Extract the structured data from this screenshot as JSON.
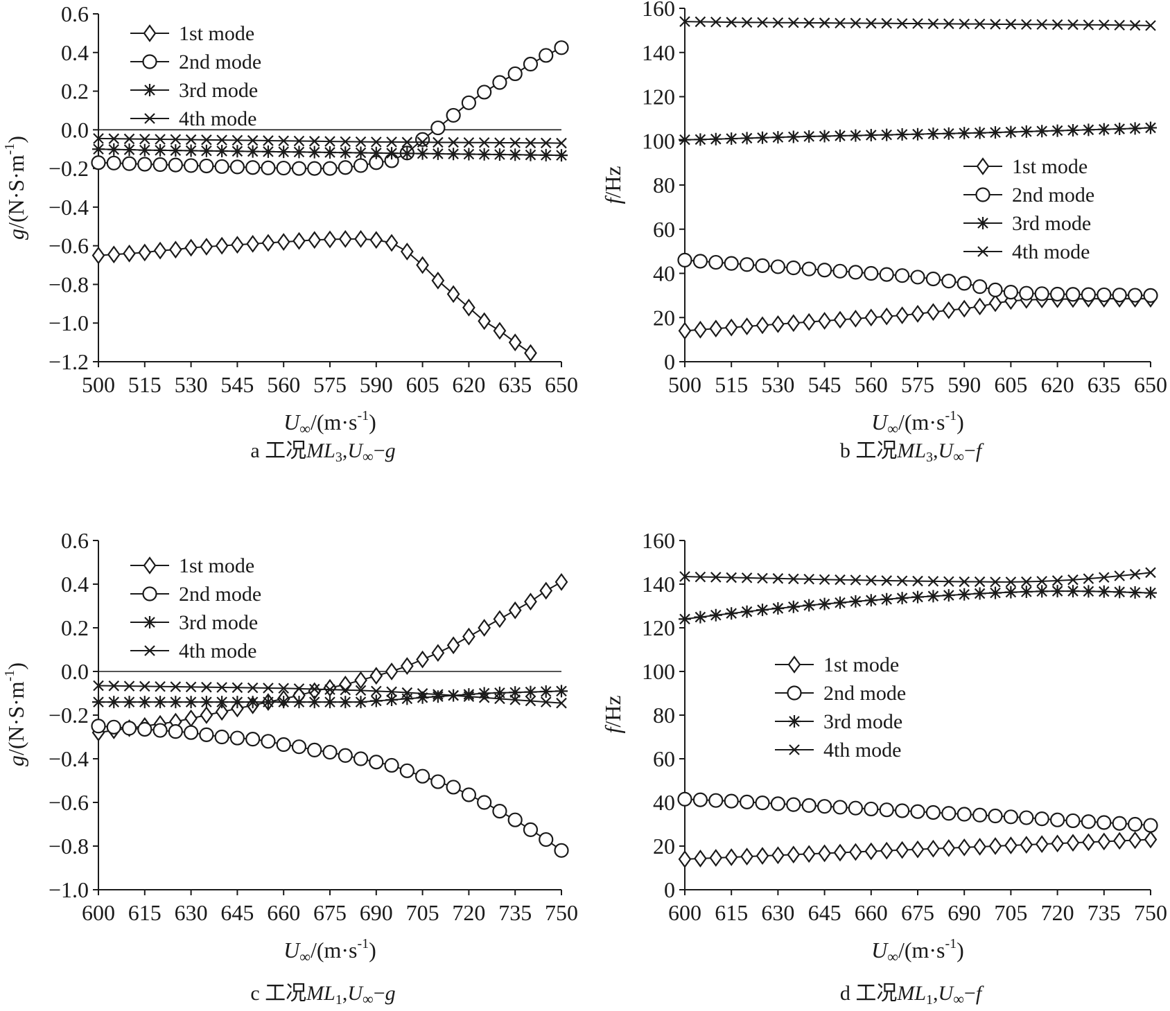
{
  "chart_data": [
    {
      "id": "a",
      "type": "line",
      "caption": {
        "letter": "a",
        "condition": "工况",
        "case": "ML",
        "sub": "3",
        "rel": ",U∞−g"
      },
      "xlabel": "U∞/(m·s⁻¹)",
      "ylabel": "g/(N·S·m⁻¹)",
      "xlim": [
        500,
        650
      ],
      "ylim": [
        -1.2,
        0.6
      ],
      "xticks": [
        500,
        515,
        530,
        545,
        560,
        575,
        590,
        605,
        620,
        635,
        650
      ],
      "yticks": [
        -1.2,
        -1.0,
        -0.8,
        -0.6,
        -0.4,
        -0.2,
        0.0,
        0.2,
        0.4,
        0.6
      ],
      "ytick_labels": [
        "−1.2",
        "−1.0",
        "−0.8",
        "−0.6",
        "−0.4",
        "−0.2",
        "0.0",
        "0.2",
        "0.4",
        "0.6"
      ],
      "xticks_labels": [
        "500",
        "515",
        "530",
        "545",
        "560",
        "575",
        "590",
        "605",
        "620",
        "635",
        "650"
      ],
      "zero_line": true,
      "legend_position": "top-left",
      "x": [
        500,
        505,
        510,
        515,
        520,
        525,
        530,
        535,
        540,
        545,
        550,
        555,
        560,
        565,
        570,
        575,
        580,
        585,
        590,
        595,
        600,
        605,
        610,
        615,
        620,
        625,
        630,
        635,
        640,
        645,
        650
      ],
      "series": [
        {
          "name": "1st mode",
          "marker": "diamond",
          "values": [
            -0.65,
            -0.645,
            -0.64,
            -0.635,
            -0.625,
            -0.62,
            -0.61,
            -0.605,
            -0.6,
            -0.595,
            -0.59,
            -0.585,
            -0.58,
            -0.575,
            -0.57,
            -0.567,
            -0.565,
            -0.565,
            -0.57,
            -0.585,
            -0.63,
            -0.7,
            -0.78,
            -0.85,
            -0.92,
            -0.99,
            -1.04,
            -1.1,
            -1.155,
            null,
            null
          ]
        },
        {
          "name": "2nd mode",
          "marker": "circle",
          "values": [
            -0.17,
            -0.172,
            -0.175,
            -0.178,
            -0.18,
            -0.182,
            -0.185,
            -0.187,
            -0.19,
            -0.192,
            -0.195,
            -0.197,
            -0.198,
            -0.2,
            -0.2,
            -0.2,
            -0.195,
            -0.185,
            -0.17,
            -0.16,
            -0.12,
            -0.05,
            0.01,
            0.075,
            0.14,
            0.195,
            0.245,
            0.29,
            0.34,
            0.385,
            0.425
          ]
        },
        {
          "name": "3rd mode",
          "marker": "asterisk",
          "values": [
            -0.1,
            -0.102,
            -0.103,
            -0.105,
            -0.106,
            -0.107,
            -0.108,
            -0.109,
            -0.11,
            -0.111,
            -0.112,
            -0.113,
            -0.114,
            -0.115,
            -0.116,
            -0.117,
            -0.118,
            -0.119,
            -0.12,
            -0.121,
            -0.122,
            -0.123,
            -0.124,
            -0.125,
            -0.126,
            -0.127,
            -0.128,
            -0.129,
            -0.13,
            -0.131,
            -0.132
          ]
        },
        {
          "name": "4th mode",
          "marker": "x",
          "values": [
            -0.045,
            -0.046,
            -0.047,
            -0.048,
            -0.049,
            -0.05,
            -0.051,
            -0.052,
            -0.053,
            -0.054,
            -0.055,
            -0.056,
            -0.057,
            -0.058,
            -0.059,
            -0.06,
            -0.061,
            -0.062,
            -0.063,
            -0.063,
            -0.064,
            -0.064,
            -0.065,
            -0.065,
            -0.066,
            -0.066,
            -0.067,
            -0.067,
            -0.068,
            -0.068,
            -0.069
          ]
        }
      ]
    },
    {
      "id": "b",
      "type": "line",
      "caption": {
        "letter": "b",
        "condition": "工况",
        "case": "ML",
        "sub": "3",
        "rel": ",U∞−f"
      },
      "xlabel": "U∞/(m·s⁻¹)",
      "ylabel": "f/Hz",
      "xlim": [
        500,
        650
      ],
      "ylim": [
        0,
        160
      ],
      "xticks": [
        500,
        515,
        530,
        545,
        560,
        575,
        590,
        605,
        620,
        635,
        650
      ],
      "yticks": [
        0,
        20,
        40,
        60,
        80,
        100,
        120,
        140,
        160
      ],
      "ytick_labels": [
        "0",
        "20",
        "40",
        "60",
        "80",
        "100",
        "120",
        "140",
        "160"
      ],
      "xticks_labels": [
        "500",
        "515",
        "530",
        "545",
        "560",
        "575",
        "590",
        "605",
        "620",
        "635",
        "650"
      ],
      "zero_line": false,
      "legend_position": "middle-right",
      "x": [
        500,
        505,
        510,
        515,
        520,
        525,
        530,
        535,
        540,
        545,
        550,
        555,
        560,
        565,
        570,
        575,
        580,
        585,
        590,
        595,
        600,
        605,
        610,
        615,
        620,
        625,
        630,
        635,
        640,
        645,
        650
      ],
      "series": [
        {
          "name": "1st mode",
          "marker": "diamond",
          "values": [
            14,
            14.5,
            15,
            15.5,
            16,
            16.5,
            17,
            17.5,
            18,
            18.5,
            19,
            19.5,
            20,
            20.5,
            21,
            21.7,
            22.5,
            23.3,
            24,
            25,
            26.5,
            27.5,
            28,
            28.2,
            28.3,
            28.4,
            28.5,
            28.5,
            28.5,
            28.5,
            28.5
          ]
        },
        {
          "name": "2nd mode",
          "marker": "circle",
          "values": [
            46,
            45.5,
            45,
            44.5,
            44,
            43.5,
            43,
            42.5,
            42,
            41.5,
            41,
            40.5,
            40,
            39.5,
            39,
            38.3,
            37.5,
            36.5,
            35.5,
            34,
            32.5,
            31.5,
            31,
            30.8,
            30.6,
            30.5,
            30.4,
            30.3,
            30.2,
            30.1,
            30
          ]
        },
        {
          "name": "3rd mode",
          "marker": "asterisk",
          "values": [
            100.5,
            100.6,
            100.8,
            101,
            101.2,
            101.4,
            101.6,
            101.8,
            102,
            102.1,
            102.3,
            102.4,
            102.6,
            102.7,
            102.9,
            103,
            103.2,
            103.3,
            103.5,
            103.6,
            103.8,
            104,
            104.2,
            104.4,
            104.6,
            104.8,
            105,
            105.2,
            105.4,
            105.6,
            105.9
          ]
        },
        {
          "name": "4th mode",
          "marker": "x",
          "values": [
            154,
            153.9,
            153.8,
            153.7,
            153.6,
            153.6,
            153.5,
            153.5,
            153.4,
            153.4,
            153.3,
            153.3,
            153.2,
            153.2,
            153.1,
            153.1,
            153,
            153,
            152.9,
            152.9,
            152.8,
            152.8,
            152.7,
            152.7,
            152.6,
            152.6,
            152.5,
            152.5,
            152.4,
            152.3,
            152.2
          ]
        }
      ]
    },
    {
      "id": "c",
      "type": "line",
      "caption": {
        "letter": "c",
        "condition": "工况",
        "case": "ML",
        "sub": "1",
        "rel": ",U∞−g"
      },
      "xlabel": "U∞/(m·s⁻¹)",
      "ylabel": "g/(N·S·m⁻¹)",
      "xlim": [
        600,
        750
      ],
      "ylim": [
        -1.0,
        0.6
      ],
      "xticks": [
        600,
        615,
        630,
        645,
        660,
        675,
        690,
        705,
        720,
        735,
        750
      ],
      "yticks": [
        -1.0,
        -0.8,
        -0.6,
        -0.4,
        -0.2,
        0.0,
        0.2,
        0.4,
        0.6
      ],
      "ytick_labels": [
        "−1.0",
        "−0.8",
        "−0.6",
        "−0.4",
        "−0.2",
        "0.0",
        "0.2",
        "0.4",
        "0.6"
      ],
      "xticks_labels": [
        "600",
        "615",
        "630",
        "645",
        "660",
        "675",
        "690",
        "705",
        "720",
        "735",
        "750"
      ],
      "zero_line": true,
      "legend_position": "top-left",
      "x": [
        600,
        605,
        610,
        615,
        620,
        625,
        630,
        635,
        640,
        645,
        650,
        655,
        660,
        665,
        670,
        675,
        680,
        685,
        690,
        695,
        700,
        705,
        710,
        715,
        720,
        725,
        730,
        735,
        740,
        745,
        750
      ],
      "series": [
        {
          "name": "1st mode",
          "marker": "diamond",
          "values": [
            -0.28,
            -0.27,
            -0.26,
            -0.25,
            -0.24,
            -0.23,
            -0.215,
            -0.2,
            -0.185,
            -0.17,
            -0.155,
            -0.14,
            -0.125,
            -0.11,
            -0.09,
            -0.075,
            -0.06,
            -0.04,
            -0.02,
            0.0,
            0.025,
            0.055,
            0.085,
            0.12,
            0.16,
            0.2,
            0.24,
            0.28,
            0.32,
            0.37,
            0.41
          ]
        },
        {
          "name": "2nd mode",
          "marker": "circle",
          "values": [
            -0.25,
            -0.255,
            -0.26,
            -0.265,
            -0.27,
            -0.275,
            -0.28,
            -0.29,
            -0.3,
            -0.305,
            -0.31,
            -0.32,
            -0.335,
            -0.345,
            -0.36,
            -0.37,
            -0.385,
            -0.4,
            -0.415,
            -0.43,
            -0.455,
            -0.48,
            -0.505,
            -0.53,
            -0.565,
            -0.6,
            -0.64,
            -0.68,
            -0.725,
            -0.77,
            -0.82
          ]
        },
        {
          "name": "3rd mode",
          "marker": "asterisk",
          "values": [
            -0.14,
            -0.14,
            -0.14,
            -0.14,
            -0.14,
            -0.14,
            -0.14,
            -0.14,
            -0.14,
            -0.14,
            -0.14,
            -0.14,
            -0.14,
            -0.14,
            -0.14,
            -0.14,
            -0.14,
            -0.14,
            -0.135,
            -0.13,
            -0.125,
            -0.12,
            -0.115,
            -0.11,
            -0.105,
            -0.1,
            -0.098,
            -0.096,
            -0.094,
            -0.092,
            -0.09
          ]
        },
        {
          "name": "4th mode",
          "marker": "x",
          "values": [
            -0.065,
            -0.066,
            -0.067,
            -0.068,
            -0.069,
            -0.07,
            -0.071,
            -0.072,
            -0.073,
            -0.074,
            -0.075,
            -0.076,
            -0.077,
            -0.079,
            -0.081,
            -0.083,
            -0.085,
            -0.087,
            -0.09,
            -0.093,
            -0.097,
            -0.101,
            -0.105,
            -0.11,
            -0.115,
            -0.12,
            -0.125,
            -0.13,
            -0.135,
            -0.14,
            -0.145
          ]
        }
      ]
    },
    {
      "id": "d",
      "type": "line",
      "caption": {
        "letter": "d",
        "condition": "工况",
        "case": "ML",
        "sub": "1",
        "rel": ",U∞−f"
      },
      "xlabel": "U∞/(m·s⁻¹)",
      "ylabel": "f/Hz",
      "xlim": [
        600,
        750
      ],
      "ylim": [
        0,
        160
      ],
      "xticks": [
        600,
        615,
        630,
        645,
        660,
        675,
        690,
        705,
        720,
        735,
        750
      ],
      "yticks": [
        0,
        20,
        40,
        60,
        80,
        100,
        120,
        140,
        160
      ],
      "ytick_labels": [
        "0",
        "20",
        "40",
        "60",
        "80",
        "100",
        "120",
        "140",
        "160"
      ],
      "xticks_labels": [
        "600",
        "615",
        "630",
        "645",
        "660",
        "675",
        "690",
        "705",
        "720",
        "735",
        "750"
      ],
      "zero_line": false,
      "legend_position": "middle-left",
      "x": [
        600,
        605,
        610,
        615,
        620,
        625,
        630,
        635,
        640,
        645,
        650,
        655,
        660,
        665,
        670,
        675,
        680,
        685,
        690,
        695,
        700,
        705,
        710,
        715,
        720,
        725,
        730,
        735,
        740,
        745,
        750
      ],
      "series": [
        {
          "name": "1st mode",
          "marker": "diamond",
          "values": [
            14,
            14.3,
            14.6,
            14.9,
            15.2,
            15.5,
            15.8,
            16.1,
            16.4,
            16.7,
            17,
            17.3,
            17.6,
            17.9,
            18.2,
            18.5,
            18.8,
            19.1,
            19.4,
            19.7,
            20,
            20.3,
            20.6,
            20.9,
            21.2,
            21.5,
            21.8,
            22.1,
            22.4,
            22.7,
            23
          ]
        },
        {
          "name": "2nd mode",
          "marker": "circle",
          "values": [
            41.5,
            41.2,
            40.9,
            40.6,
            40.2,
            39.8,
            39.4,
            39,
            38.6,
            38.2,
            37.8,
            37.4,
            37,
            36.6,
            36.2,
            35.8,
            35.4,
            35,
            34.6,
            34.2,
            33.8,
            33.4,
            33,
            32.5,
            32,
            31.6,
            31.2,
            30.8,
            30.4,
            30,
            29.5
          ]
        },
        {
          "name": "3rd mode",
          "marker": "asterisk",
          "values": [
            124,
            124.9,
            125.8,
            126.6,
            127.4,
            128.2,
            128.9,
            129.6,
            130.3,
            130.9,
            131.5,
            132.1,
            132.6,
            133.1,
            133.6,
            134.1,
            134.5,
            134.9,
            135.3,
            135.7,
            136,
            136.3,
            136.5,
            136.7,
            136.8,
            136.8,
            136.7,
            136.6,
            136.4,
            136.2,
            136
          ]
        },
        {
          "name": "4th mode",
          "marker": "x",
          "values": [
            143.5,
            143.3,
            143.2,
            143,
            142.9,
            142.7,
            142.6,
            142.4,
            142.3,
            142.1,
            142,
            141.9,
            141.7,
            141.6,
            141.5,
            141.4,
            141.3,
            141.2,
            141.1,
            141.1,
            141,
            141,
            141.1,
            141.3,
            141.6,
            142,
            142.5,
            143.1,
            143.8,
            144.5,
            145.3
          ]
        }
      ]
    }
  ]
}
